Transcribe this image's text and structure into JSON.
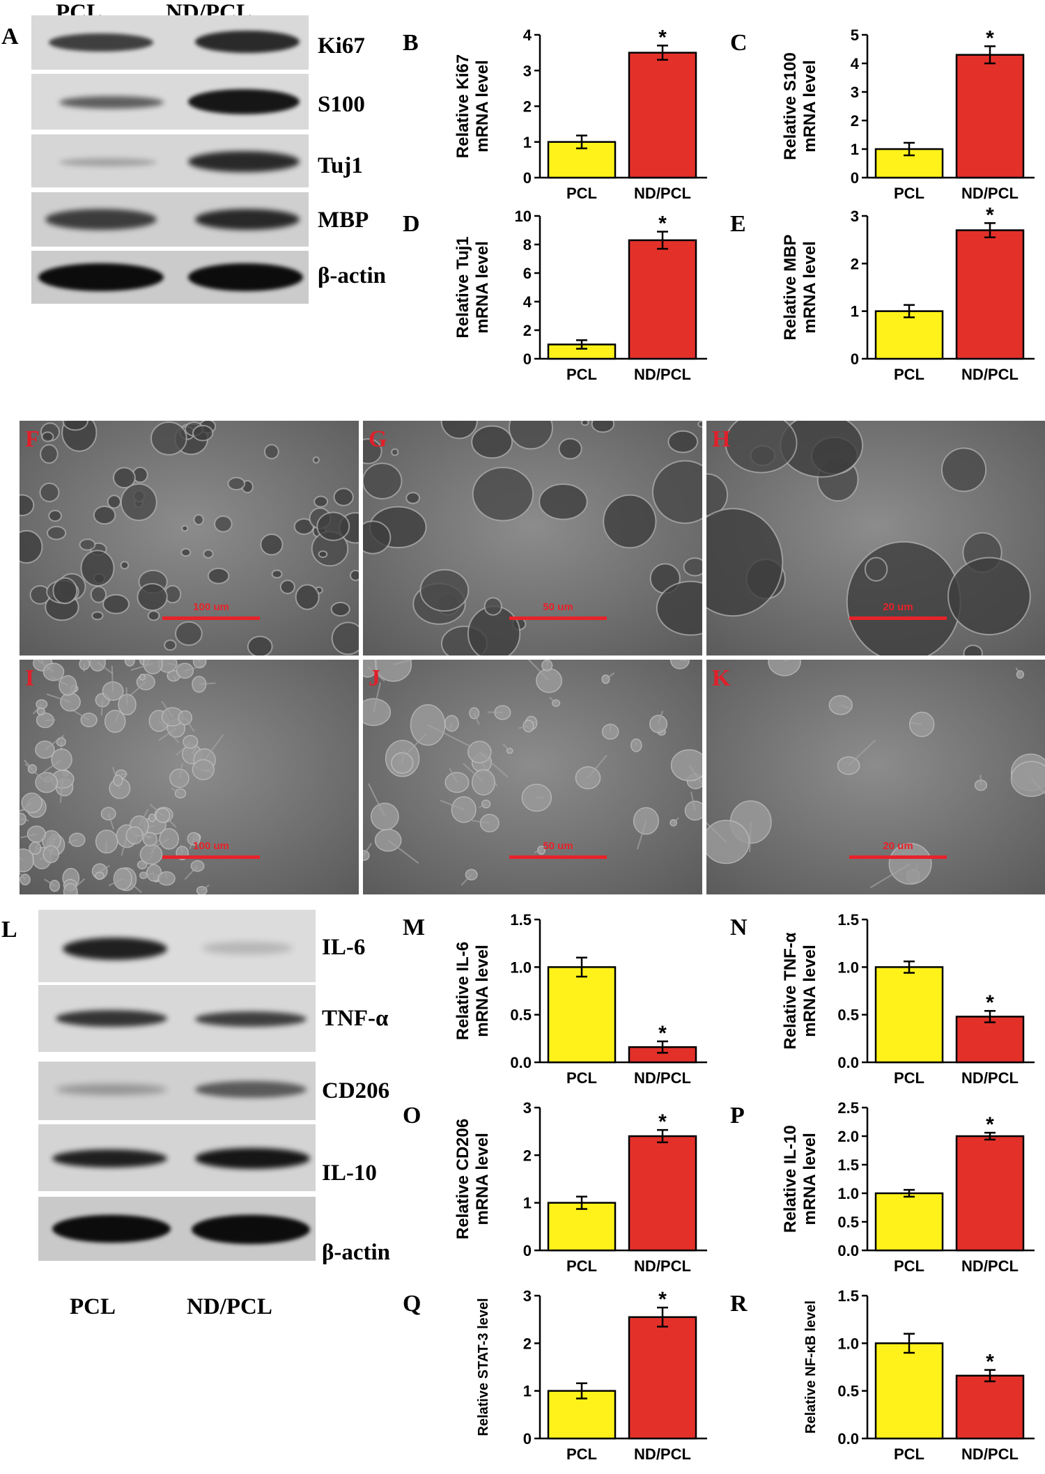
{
  "western_blot_top": {
    "lane_labels": [
      "PCL",
      "ND/PCL"
    ],
    "proteins": [
      "Ki67",
      "S100",
      "Tuj1",
      "MBP",
      "β-actin"
    ],
    "panel_label": "A"
  },
  "sem": {
    "panels": [
      {
        "label": "F",
        "scale": "100 um"
      },
      {
        "label": "G",
        "scale": "50 um"
      },
      {
        "label": "H",
        "scale": "20 um"
      },
      {
        "label": "I",
        "scale": "100 um"
      },
      {
        "label": "J",
        "scale": "50 um"
      },
      {
        "label": "K",
        "scale": "20 um"
      }
    ]
  },
  "western_blot_bottom": {
    "lane_labels": [
      "PCL",
      "ND/PCL"
    ],
    "proteins": [
      "IL-6",
      "TNF-α",
      "CD206",
      "IL-10",
      "β-actin"
    ],
    "panel_label": "L"
  },
  "colors": {
    "pcl": "#fff21a",
    "nd_pcl": "#e3312a",
    "scale": "#e8222a"
  },
  "chart_data": [
    {
      "type": "bar",
      "panel": "B",
      "ylabel": [
        "Relative Ki67",
        "mRNA level"
      ],
      "categories": [
        "PCL",
        "ND/PCL"
      ],
      "values": [
        1.0,
        3.5
      ],
      "errors": [
        0.18,
        0.2
      ],
      "ylim": [
        0,
        4
      ],
      "ticks": [
        "0",
        "1",
        "2",
        "3",
        "4"
      ],
      "significance": [
        "",
        "*"
      ]
    },
    {
      "type": "bar",
      "panel": "C",
      "ylabel": [
        "Relative S100",
        "mRNA level"
      ],
      "categories": [
        "PCL",
        "ND/PCL"
      ],
      "values": [
        1.0,
        4.3
      ],
      "errors": [
        0.22,
        0.3
      ],
      "ylim": [
        0,
        5
      ],
      "ticks": [
        "0",
        "1",
        "2",
        "3",
        "4",
        "5"
      ],
      "significance": [
        "",
        "*"
      ]
    },
    {
      "type": "bar",
      "panel": "D",
      "ylabel": [
        "Relative Tuj1",
        "mRNA level"
      ],
      "categories": [
        "PCL",
        "ND/PCL"
      ],
      "values": [
        1.0,
        8.3
      ],
      "errors": [
        0.3,
        0.6
      ],
      "ylim": [
        0,
        10
      ],
      "ticks": [
        "0",
        "2",
        "4",
        "6",
        "8",
        "10"
      ],
      "significance": [
        "",
        "*"
      ]
    },
    {
      "type": "bar",
      "panel": "E",
      "ylabel": [
        "Relative MBP",
        "mRNA level"
      ],
      "categories": [
        "PCL",
        "ND/PCL"
      ],
      "values": [
        1.0,
        2.7
      ],
      "errors": [
        0.13,
        0.15
      ],
      "ylim": [
        0,
        3
      ],
      "ticks": [
        "0",
        "1",
        "2",
        "3"
      ],
      "significance": [
        "",
        "*"
      ]
    },
    {
      "type": "bar",
      "panel": "M",
      "ylabel": [
        "Relative IL-6",
        "mRNA level"
      ],
      "categories": [
        "PCL",
        "ND/PCL"
      ],
      "values": [
        1.0,
        0.16
      ],
      "errors": [
        0.1,
        0.06
      ],
      "ylim": [
        0,
        1.5
      ],
      "ticks": [
        "0.0",
        "0.5",
        "1.0",
        "1.5"
      ],
      "significance": [
        "",
        "*"
      ]
    },
    {
      "type": "bar",
      "panel": "N",
      "ylabel": [
        "Relative TNF-α",
        "mRNA level"
      ],
      "categories": [
        "PCL",
        "ND/PCL"
      ],
      "values": [
        1.0,
        0.48
      ],
      "errors": [
        0.06,
        0.06
      ],
      "ylim": [
        0,
        1.5
      ],
      "ticks": [
        "0.0",
        "0.5",
        "1.0",
        "1.5"
      ],
      "significance": [
        "",
        "*"
      ]
    },
    {
      "type": "bar",
      "panel": "O",
      "ylabel": [
        "Relative CD206",
        "mRNA level"
      ],
      "categories": [
        "PCL",
        "ND/PCL"
      ],
      "values": [
        1.0,
        2.4
      ],
      "errors": [
        0.13,
        0.13
      ],
      "ylim": [
        0,
        3
      ],
      "ticks": [
        "0",
        "1",
        "2",
        "3"
      ],
      "significance": [
        "",
        "*"
      ]
    },
    {
      "type": "bar",
      "panel": "P",
      "ylabel": [
        "Relative IL-10",
        "mRNA level"
      ],
      "categories": [
        "PCL",
        "ND/PCL"
      ],
      "values": [
        1.0,
        2.0
      ],
      "errors": [
        0.06,
        0.06
      ],
      "ylim": [
        0,
        2.5
      ],
      "ticks": [
        "0.0",
        "0.5",
        "1.0",
        "1.5",
        "2.0",
        "2.5"
      ],
      "significance": [
        "",
        "*"
      ]
    },
    {
      "type": "bar",
      "panel": "Q",
      "ylabel": [
        "Relative STAT-3 level"
      ],
      "categories": [
        "PCL",
        "ND/PCL"
      ],
      "values": [
        1.0,
        2.55
      ],
      "errors": [
        0.16,
        0.2
      ],
      "ylim": [
        0,
        3
      ],
      "ticks": [
        "0",
        "1",
        "2",
        "3"
      ],
      "significance": [
        "",
        "*"
      ]
    },
    {
      "type": "bar",
      "panel": "R",
      "ylabel": [
        "Relative NF-κB level"
      ],
      "categories": [
        "PCL",
        "ND/PCL"
      ],
      "values": [
        1.0,
        0.66
      ],
      "errors": [
        0.1,
        0.06
      ],
      "ylim": [
        0,
        1.5
      ],
      "ticks": [
        "0.0",
        "0.5",
        "1.0",
        "1.5"
      ],
      "significance": [
        "",
        "*"
      ]
    }
  ]
}
